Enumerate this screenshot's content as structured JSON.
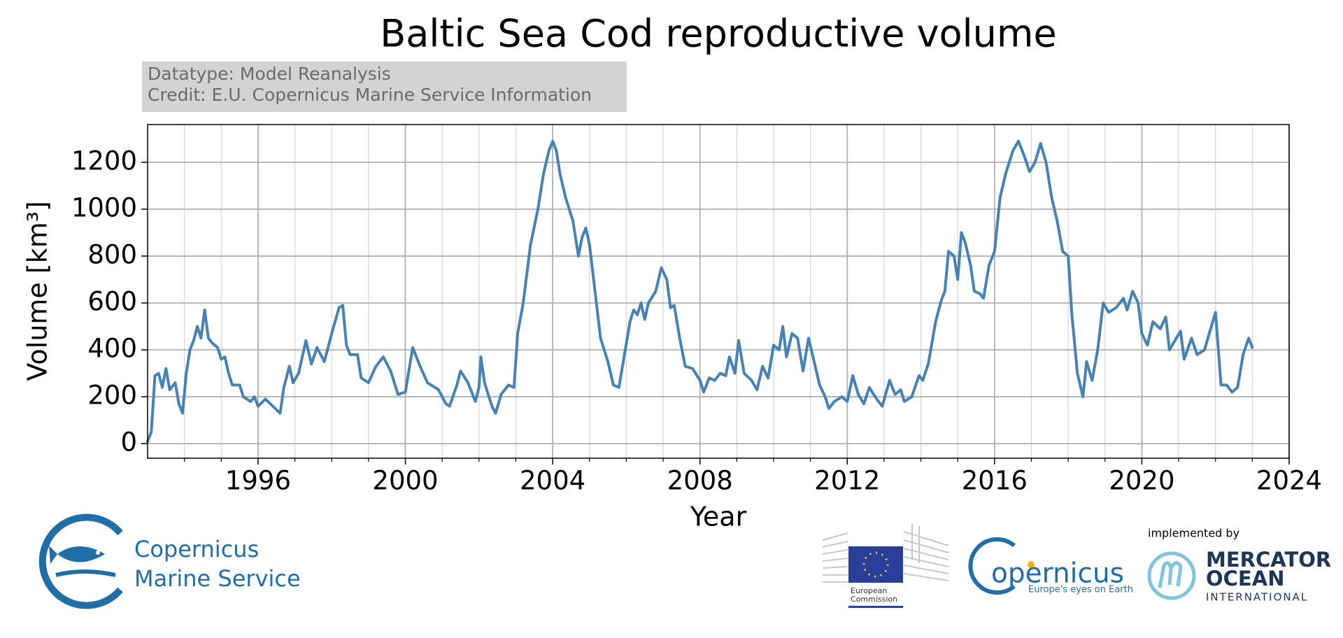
{
  "chart_data": {
    "type": "line",
    "title": "Baltic Sea Cod reproductive volume",
    "annotations": [
      "Datatype: Model Reanalysis",
      "Credit: E.U. Copernicus Marine Service Information"
    ],
    "xlabel": "Year",
    "ylabel": "Volume [km³]",
    "color": "#4682b4",
    "grid": true,
    "xlim": [
      1993,
      2024
    ],
    "ylim": [
      -62,
      1361
    ],
    "xticks": [
      1996,
      2000,
      2004,
      2008,
      2012,
      2016,
      2020,
      2024
    ],
    "xticks_minor": [
      1994,
      1995,
      1997,
      1998,
      1999,
      2001,
      2002,
      2003,
      2005,
      2006,
      2007,
      2009,
      2010,
      2011,
      2013,
      2014,
      2015,
      2017,
      2018,
      2019,
      2021,
      2022,
      2023
    ],
    "yticks": [
      0,
      200,
      400,
      600,
      800,
      1000,
      1200
    ],
    "x": [
      1993.0,
      1993.1,
      1993.2,
      1993.3,
      1993.4,
      1993.5,
      1993.6,
      1993.75,
      1993.85,
      1993.95,
      1994.05,
      1994.15,
      1994.25,
      1994.35,
      1994.45,
      1994.55,
      1994.65,
      1994.75,
      1994.9,
      1995.0,
      1995.1,
      1995.2,
      1995.3,
      1995.5,
      1995.6,
      1995.8,
      1995.9,
      1996.0,
      1996.2,
      1996.4,
      1996.6,
      1996.7,
      1996.85,
      1996.95,
      1997.1,
      1997.3,
      1997.45,
      1997.6,
      1997.8,
      1998.0,
      1998.2,
      1998.3,
      1998.4,
      1998.5,
      1998.7,
      1998.8,
      1999.0,
      1999.2,
      1999.4,
      1999.6,
      1999.8,
      2000.0,
      2000.2,
      2000.4,
      2000.6,
      2000.9,
      2001.1,
      2001.2,
      2001.4,
      2001.5,
      2001.7,
      2001.9,
      2002.0,
      2002.05,
      2002.15,
      2002.35,
      2002.45,
      2002.6,
      2002.8,
      2002.95,
      2003.05,
      2003.2,
      2003.4,
      2003.6,
      2003.75,
      2003.9,
      2004.0,
      2004.1,
      2004.2,
      2004.35,
      2004.55,
      2004.7,
      2004.8,
      2004.9,
      2005.0,
      2005.15,
      2005.3,
      2005.5,
      2005.65,
      2005.8,
      2005.95,
      2006.1,
      2006.2,
      2006.3,
      2006.4,
      2006.5,
      2006.6,
      2006.8,
      2006.95,
      2007.1,
      2007.2,
      2007.3,
      2007.45,
      2007.6,
      2007.8,
      2008.0,
      2008.1,
      2008.25,
      2008.4,
      2008.55,
      2008.7,
      2008.8,
      2008.95,
      2009.05,
      2009.2,
      2009.4,
      2009.55,
      2009.7,
      2009.85,
      2010.0,
      2010.15,
      2010.25,
      2010.35,
      2010.5,
      2010.65,
      2010.8,
      2010.95,
      2011.1,
      2011.25,
      2011.4,
      2011.5,
      2011.65,
      2011.85,
      2012.0,
      2012.15,
      2012.3,
      2012.45,
      2012.6,
      2012.8,
      2012.95,
      2013.15,
      2013.3,
      2013.45,
      2013.55,
      2013.75,
      2013.95,
      2014.05,
      2014.2,
      2014.4,
      2014.55,
      2014.65,
      2014.75,
      2014.9,
      2015.0,
      2015.1,
      2015.2,
      2015.35,
      2015.45,
      2015.6,
      2015.7,
      2015.85,
      2016.0,
      2016.15,
      2016.3,
      2016.5,
      2016.65,
      2016.8,
      2016.95,
      2017.1,
      2017.25,
      2017.4,
      2017.55,
      2017.7,
      2017.85,
      2018.0,
      2018.1,
      2018.25,
      2018.4,
      2018.5,
      2018.65,
      2018.8,
      2018.95,
      2019.1,
      2019.3,
      2019.5,
      2019.6,
      2019.75,
      2019.9,
      2020.0,
      2020.15,
      2020.3,
      2020.5,
      2020.65,
      2020.75,
      2020.9,
      2021.05,
      2021.15,
      2021.35,
      2021.5,
      2021.7,
      2021.85,
      2022.0,
      2022.15,
      2022.3,
      2022.45,
      2022.6,
      2022.75,
      2022.9,
      2023.0
    ],
    "values": [
      10,
      50,
      290,
      300,
      240,
      320,
      230,
      260,
      170,
      130,
      300,
      400,
      440,
      500,
      450,
      570,
      450,
      430,
      410,
      360,
      370,
      300,
      250,
      250,
      200,
      180,
      200,
      160,
      190,
      160,
      130,
      240,
      330,
      260,
      300,
      440,
      340,
      410,
      350,
      470,
      580,
      590,
      420,
      380,
      380,
      280,
      260,
      330,
      370,
      310,
      210,
      220,
      410,
      330,
      260,
      230,
      170,
      160,
      250,
      310,
      260,
      180,
      240,
      370,
      260,
      160,
      130,
      210,
      250,
      240,
      470,
      600,
      850,
      1000,
      1150,
      1250,
      1290,
      1250,
      1150,
      1050,
      950,
      800,
      880,
      920,
      850,
      650,
      450,
      350,
      250,
      240,
      380,
      520,
      570,
      550,
      600,
      530,
      600,
      650,
      750,
      700,
      580,
      590,
      450,
      330,
      320,
      270,
      220,
      280,
      270,
      300,
      290,
      370,
      300,
      440,
      300,
      270,
      230,
      330,
      280,
      420,
      400,
      500,
      370,
      470,
      450,
      310,
      450,
      350,
      250,
      200,
      150,
      180,
      200,
      180,
      290,
      210,
      170,
      240,
      190,
      160,
      270,
      210,
      230,
      180,
      200,
      290,
      270,
      340,
      520,
      610,
      650,
      820,
      800,
      700,
      900,
      860,
      760,
      650,
      640,
      620,
      760,
      820,
      1050,
      1150,
      1250,
      1290,
      1230,
      1160,
      1200,
      1280,
      1200,
      1050,
      950,
      820,
      800,
      550,
      300,
      200,
      350,
      270,
      400,
      600,
      560,
      580,
      620,
      570,
      650,
      600,
      470,
      420,
      520,
      490,
      540,
      400,
      440,
      480,
      360,
      450,
      380,
      400,
      480,
      560,
      250,
      250,
      220,
      240,
      380,
      450,
      410
    ]
  },
  "logos": {
    "cmems": [
      "Copernicus",
      "Marine Service"
    ],
    "ec": [
      "European",
      "Commission"
    ],
    "copernicus": {
      "brand": "opernicus",
      "tagline": "Europe's eyes on Earth"
    },
    "mercator": {
      "caption": "implemented by",
      "lines": [
        "MERCATOR",
        "OCEAN",
        "INTERNATIONAL"
      ]
    }
  }
}
